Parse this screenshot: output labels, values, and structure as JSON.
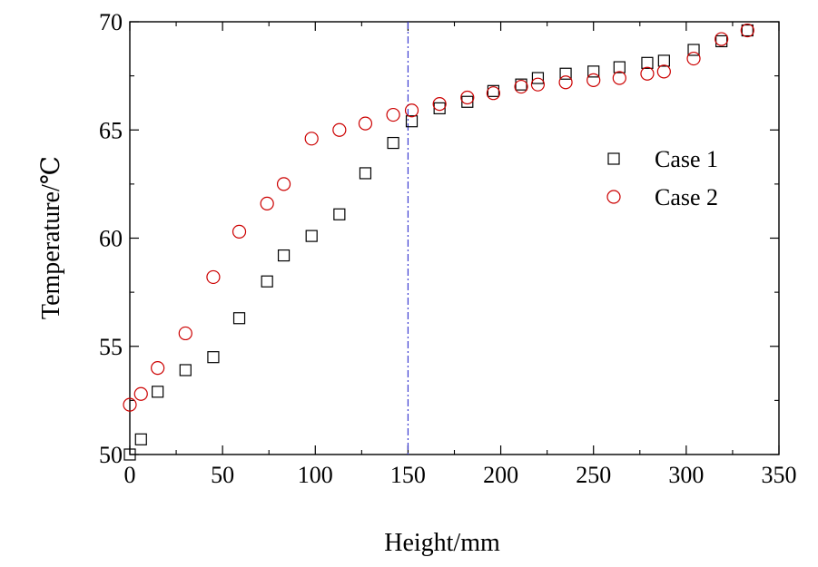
{
  "chart_data": {
    "type": "scatter",
    "title": "",
    "xlabel": "Height/mm",
    "ylabel": "Temperature/℃",
    "xlim": [
      0,
      350
    ],
    "ylim": [
      50,
      70
    ],
    "xticks": [
      0,
      50,
      100,
      150,
      200,
      250,
      300,
      350
    ],
    "yticks": [
      50,
      55,
      60,
      65,
      70
    ],
    "grid": false,
    "legend_position": "right",
    "reference_line": {
      "x": 150,
      "style": "dash-dot",
      "color": "#3b3bd1"
    },
    "series": [
      {
        "name": "Case 1",
        "marker": "square",
        "color": "#000000",
        "x": [
          0,
          6,
          15,
          30,
          45,
          59,
          74,
          83,
          98,
          113,
          127,
          142,
          152,
          167,
          182,
          196,
          211,
          220,
          235,
          250,
          264,
          279,
          288,
          304,
          319,
          333
        ],
        "y": [
          50.0,
          50.7,
          52.9,
          53.9,
          54.5,
          56.3,
          58.0,
          59.2,
          60.1,
          61.1,
          63.0,
          64.4,
          65.4,
          66.0,
          66.3,
          66.8,
          67.1,
          67.4,
          67.6,
          67.7,
          67.9,
          68.1,
          68.2,
          68.7,
          69.1,
          69.6
        ]
      },
      {
        "name": "Case 2",
        "marker": "circle",
        "color": "#cc0000",
        "x": [
          0,
          6,
          15,
          30,
          45,
          59,
          74,
          83,
          98,
          113,
          127,
          142,
          152,
          167,
          182,
          196,
          211,
          220,
          235,
          250,
          264,
          279,
          288,
          304,
          319,
          333
        ],
        "y": [
          52.3,
          52.8,
          54.0,
          55.6,
          58.2,
          60.3,
          61.6,
          62.5,
          64.6,
          65.0,
          65.3,
          65.7,
          65.9,
          66.2,
          66.5,
          66.7,
          67.0,
          67.1,
          67.2,
          67.3,
          67.4,
          67.6,
          67.7,
          68.3,
          69.2,
          69.6
        ]
      }
    ]
  }
}
